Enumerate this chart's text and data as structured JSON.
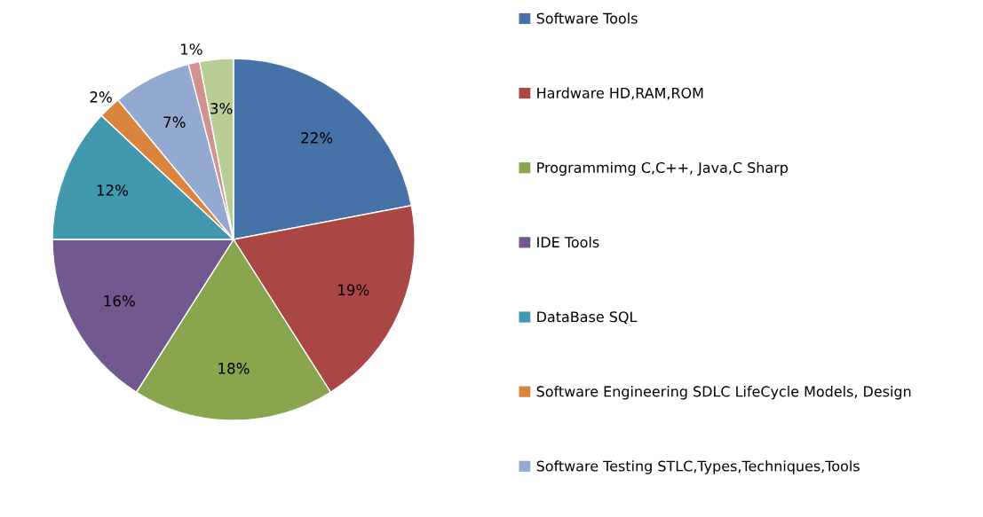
{
  "chart_data": {
    "type": "pie",
    "categories": [
      "Software Tools",
      "Hardware HD,RAM,ROM",
      "Programmimg C,C++, Java,C Sharp",
      "IDE Tools",
      "DataBase SQL",
      "Software Engineering SDLC LifeCycle Models, Design",
      "Software Testing STLC,Types,Techniques,Tools",
      null,
      null
    ],
    "values": [
      22,
      19,
      18,
      16,
      12,
      2,
      7,
      1,
      3
    ],
    "value_labels": [
      "22%",
      "19%",
      "18%",
      "16%",
      "12%",
      "2%",
      "7%",
      "1%",
      "3%"
    ],
    "colors": [
      "#4672a8",
      "#aa4644",
      "#89a54e",
      "#71588f",
      "#4198af",
      "#db843d",
      "#93a9cf",
      "#d19392",
      "#b9cd96"
    ],
    "legend": "right"
  }
}
